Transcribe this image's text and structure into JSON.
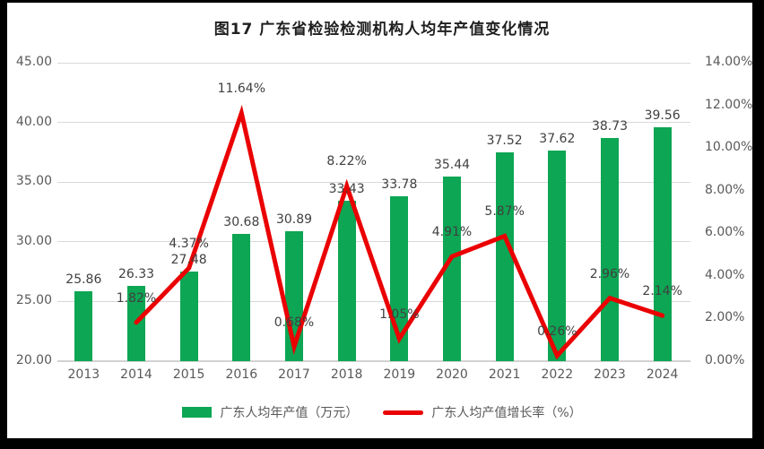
{
  "chart_data": {
    "type": "combo-bar-line",
    "title": "图17  广东省检验检测机构人均年产值变化情况",
    "categories": [
      "2013",
      "2014",
      "2015",
      "2016",
      "2017",
      "2018",
      "2019",
      "2020",
      "2021",
      "2022",
      "2023",
      "2024"
    ],
    "series": [
      {
        "name": "广东人均年产值（万元）",
        "type": "bar",
        "axis": "left",
        "color": "#0da654",
        "values": [
          25.86,
          26.33,
          27.48,
          30.68,
          30.89,
          33.43,
          33.78,
          35.44,
          37.52,
          37.62,
          38.73,
          39.56
        ],
        "labels": [
          "25.86",
          "26.33",
          "27.48",
          "30.68",
          "30.89",
          "33.43",
          "33.78",
          "35.44",
          "37.52",
          "37.62",
          "38.73",
          "39.56"
        ]
      },
      {
        "name": "广东人均产值增长率（%）",
        "type": "line",
        "axis": "right",
        "color": "#ea0000",
        "values": [
          null,
          1.82,
          4.37,
          11.64,
          0.68,
          8.22,
          1.05,
          4.91,
          5.87,
          0.26,
          2.96,
          2.14
        ],
        "labels": [
          null,
          "1.82%",
          "4.37%",
          "11.64%",
          "0.68%",
          "8.22%",
          "1.05%",
          "4.91%",
          "5.87%",
          "0.26%",
          "2.96%",
          "2.14%"
        ]
      }
    ],
    "left_axis": {
      "min": 20,
      "max": 45,
      "tick_values": [
        20,
        25,
        30,
        35,
        40,
        45
      ],
      "ticks": [
        "20.00",
        "25.00",
        "30.00",
        "35.00",
        "40.00",
        "45.00"
      ]
    },
    "right_axis": {
      "min": 0,
      "max": 14,
      "tick_values": [
        0,
        2,
        4,
        6,
        8,
        10,
        12,
        14
      ],
      "ticks": [
        "0.00%",
        "2.00%",
        "4.00%",
        "6.00%",
        "8.00%",
        "10.00%",
        "12.00%",
        "14.00%"
      ]
    },
    "grid": "horizontal",
    "legend_position": "bottom",
    "xlabel": "",
    "ylabel_left": "",
    "ylabel_right": ""
  }
}
